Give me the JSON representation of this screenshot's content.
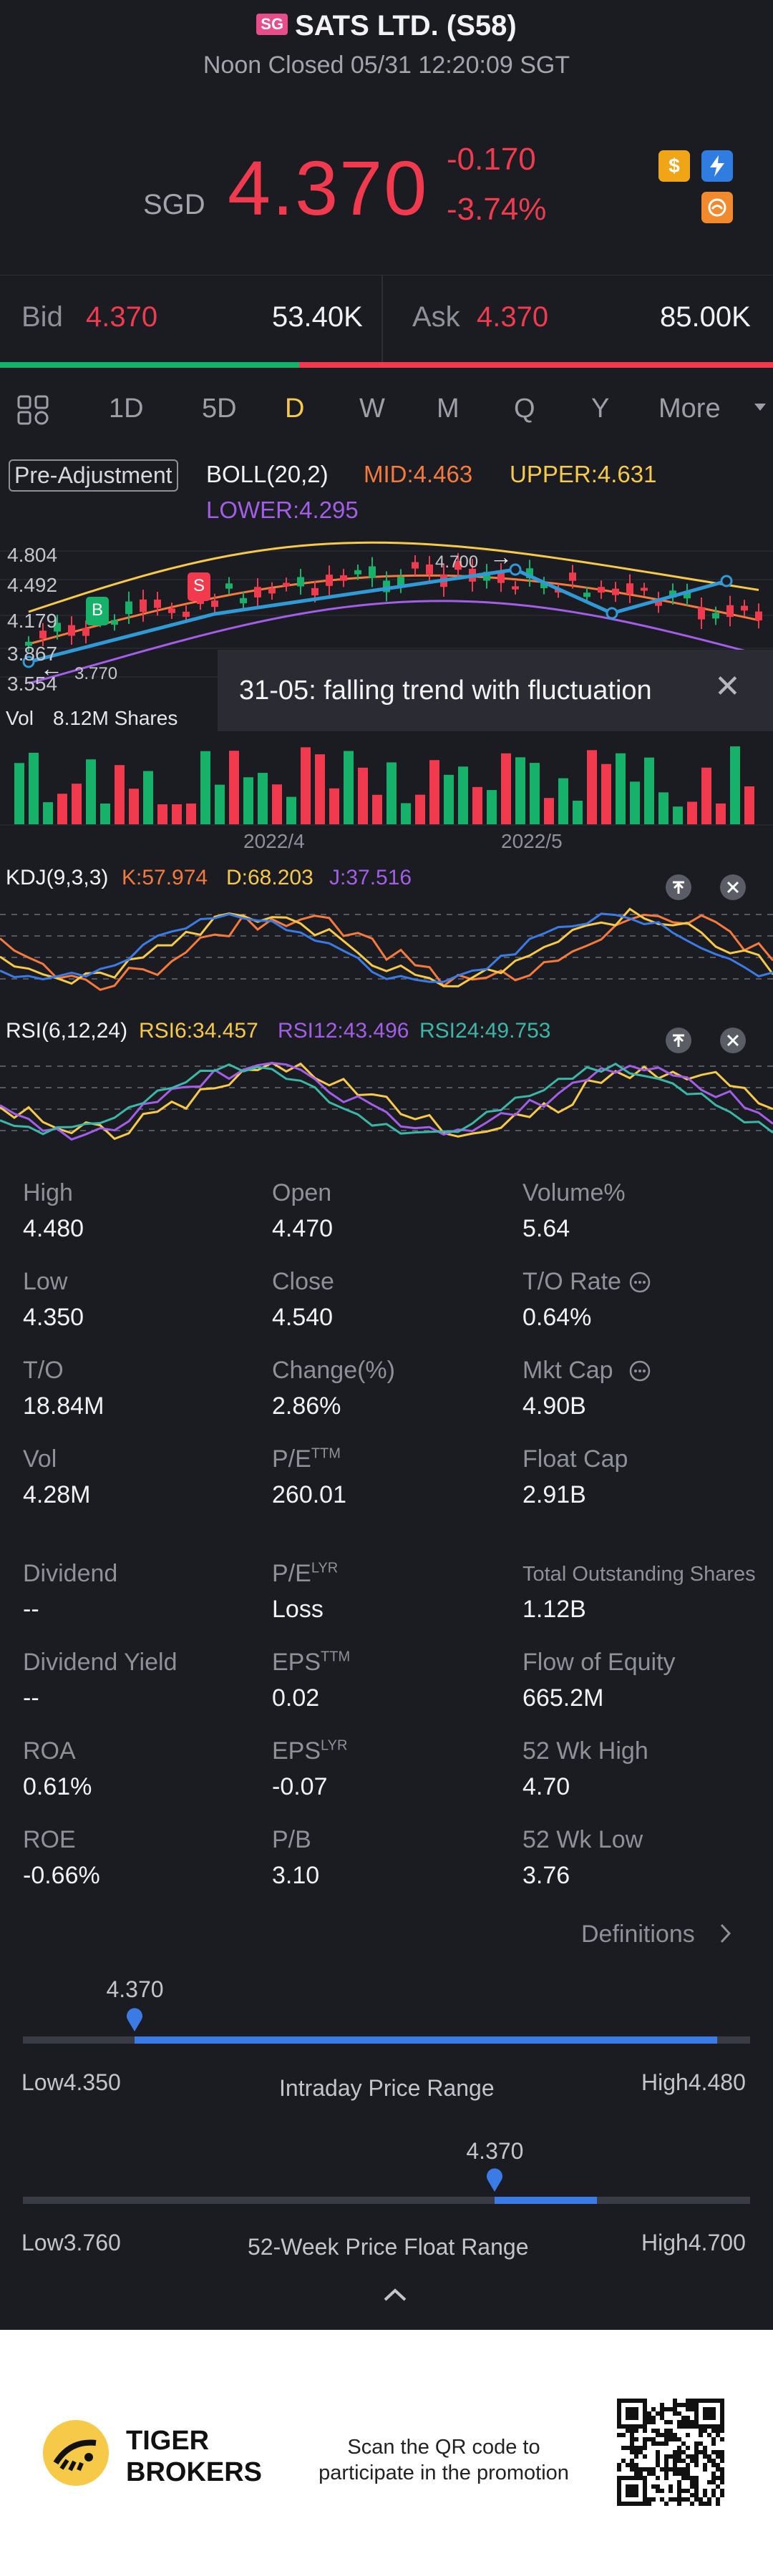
{
  "header": {
    "badge": "SG",
    "title": "SATS LTD. (S58)",
    "subtitle": "Noon Closed 05/31 12:20:09 SGT",
    "currency": "SGD",
    "price": "4.370",
    "change": "-0.170",
    "change_pct": "-3.74%",
    "icons": [
      "dollar-icon",
      "flash-icon",
      "promo-icon"
    ]
  },
  "bidask": {
    "bid_label": "Bid",
    "bid_price": "4.370",
    "bid_size": "53.40K",
    "ask_label": "Ask",
    "ask_price": "4.370",
    "ask_size": "85.00K",
    "bid_ratio": 0.387
  },
  "tabs": {
    "items": [
      "1D",
      "5D",
      "D",
      "W",
      "M",
      "Q",
      "Y",
      "More"
    ],
    "active": "D"
  },
  "indicators": {
    "pre_adjustment": "Pre-Adjustment",
    "boll": "BOLL(20,2)",
    "mid": "MID:4.463",
    "upper": "UPPER:4.631",
    "lower": "LOWER:4.295"
  },
  "main_chart": {
    "y_ticks": [
      "4.804",
      "4.492",
      "4.179",
      "3.867",
      "3.554"
    ],
    "high_label": "4.700",
    "low_label": "3.770",
    "marker_b": "B",
    "marker_s": "S",
    "tooltip": "31-05: falling trend with fluctuation",
    "vol_label": "Vol",
    "vol_value": "8.12M Shares",
    "x_labels": [
      "2022/4",
      "2022/5"
    ]
  },
  "kdj": {
    "label": "KDJ(9,3,3)",
    "k": "K:57.974",
    "d": "D:68.203",
    "j": "J:37.516"
  },
  "rsi": {
    "label": "RSI(6,12,24)",
    "rsi6": "RSI6:34.457",
    "rsi12": "RSI12:43.496",
    "rsi24": "RSI24:49.753"
  },
  "stats": {
    "high_label": "High",
    "high": "4.480",
    "open_label": "Open",
    "open": "4.470",
    "volpct_label": "Volume%",
    "volpct": "5.64",
    "low_label": "Low",
    "low": "4.350",
    "close_label": "Close",
    "close": "4.540",
    "torate_label": "T/O Rate",
    "torate": "0.64%",
    "to_label": "T/O",
    "to": "18.84M",
    "change_label": "Change(%)",
    "change": "2.86%",
    "mktcap_label": "Mkt Cap",
    "mktcap": "4.90B",
    "vol_label": "Vol",
    "vol": "4.28M",
    "pe_label": "P/E",
    "pe_sup": "TTM",
    "pe": "260.01",
    "floatcap_label": "Float Cap",
    "floatcap": "2.91B",
    "dividend_label": "Dividend",
    "dividend": "--",
    "pelyr_label": "P/E",
    "pelyr_sup": "LYR",
    "pelyr": "Loss",
    "tos_label": "Total Outstanding Shares",
    "tos": "1.12B",
    "divyield_label": "Dividend Yield",
    "divyield": "--",
    "eps_label": "EPS",
    "eps_sup": "TTM",
    "eps": "0.02",
    "foe_label": "Flow of Equity",
    "foe": "665.2M",
    "roa_label": "ROA",
    "roa": "0.61%",
    "epslyr_label": "EPS",
    "epslyr_sup": "LYR",
    "epslyr": "-0.07",
    "wkhigh_label": "52 Wk High",
    "wkhigh": "4.70",
    "roe_label": "ROE",
    "roe": "-0.66%",
    "pb_label": "P/B",
    "pb": "3.10",
    "wklow_label": "52 Wk Low",
    "wklow": "3.76",
    "definitions": "Definitions"
  },
  "intraday": {
    "current": "4.370",
    "low_label": "Low",
    "low": "4.350",
    "high_label": "High",
    "high": "4.480",
    "title": "Intraday Price Range",
    "position": 0.154
  },
  "week52": {
    "current": "4.370",
    "low_label": "Low",
    "low": "3.760",
    "high_label": "High",
    "high": "4.700",
    "title": "52-Week Price Float Range",
    "position": 0.649
  },
  "footer": {
    "brand_line1": "TIGER",
    "brand_line2": "BROKERS",
    "promo_line1": "Scan the QR code to",
    "promo_line2": "participate in the promotion"
  },
  "colors": {
    "up": "#17b26a",
    "down": "#f23a4f",
    "accent": "#f7c948",
    "range": "#3b7be5"
  }
}
